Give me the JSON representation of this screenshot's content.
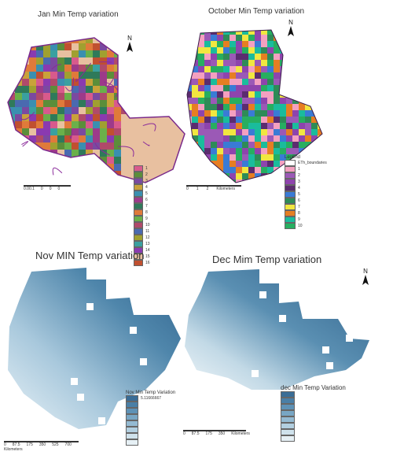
{
  "maps": {
    "jan": {
      "title": "Jan Min Temp variation",
      "north_label": "N",
      "scale_ticks": [
        "0.00.1",
        "0",
        "0",
        "0"
      ],
      "legend_items": [
        {
          "label": "1",
          "color": "#d85a8c"
        },
        {
          "label": "2",
          "color": "#5b8e3a"
        },
        {
          "label": "3",
          "color": "#7a4aa0"
        },
        {
          "label": "4",
          "color": "#c9a23a"
        },
        {
          "label": "5",
          "color": "#3a8fb0"
        },
        {
          "label": "6",
          "color": "#9d3a8a"
        },
        {
          "label": "7",
          "color": "#2f7a5a"
        },
        {
          "label": "8",
          "color": "#e07a3a"
        },
        {
          "label": "9",
          "color": "#6ab04a"
        },
        {
          "label": "10",
          "color": "#b04a6a"
        },
        {
          "label": "11",
          "color": "#4a6ab0"
        },
        {
          "label": "12",
          "color": "#a0a030"
        },
        {
          "label": "13",
          "color": "#3aa0a0"
        },
        {
          "label": "14",
          "color": "#8a3ab0"
        },
        {
          "label": "15",
          "color": "#e8c0a0"
        },
        {
          "label": "16",
          "color": "#c05030"
        }
      ]
    },
    "oct": {
      "title": "October Min Temp variation",
      "north_label": "N",
      "legend_title": "Legend",
      "scale_ticks": [
        "0",
        "1",
        "2",
        "Kilometers"
      ],
      "legend_items": [
        {
          "label": "ETh_boundaries",
          "color": "#ffffff"
        },
        {
          "label": "1",
          "color": "#f4a0c0"
        },
        {
          "label": "2",
          "color": "#9b59b6"
        },
        {
          "label": "3",
          "color": "#8e44ad"
        },
        {
          "label": "4",
          "color": "#5b2c6f"
        },
        {
          "label": "5",
          "color": "#3a7bd5"
        },
        {
          "label": "6",
          "color": "#2e8b57"
        },
        {
          "label": "7",
          "color": "#f1e740"
        },
        {
          "label": "8",
          "color": "#e67e22"
        },
        {
          "label": "9",
          "color": "#1abc9c"
        },
        {
          "label": "10",
          "color": "#27ae60"
        }
      ]
    },
    "nov": {
      "title": "Nov MIN Temp variation",
      "legend_title": "Nov Min Temp Variation",
      "scale_ticks": [
        "0",
        "87.5",
        "175",
        "350",
        "525",
        "700"
      ],
      "scale_unit": "Kilometers",
      "legend_items": [
        {
          "label": "5.11666667",
          "color": "#3a6d96"
        },
        {
          "label": "",
          "color": "#4a7fa6"
        },
        {
          "label": "",
          "color": "#5e92b6"
        },
        {
          "label": "",
          "color": "#78a6c4"
        },
        {
          "label": "",
          "color": "#94bad2"
        },
        {
          "label": "",
          "color": "#b2cfe0"
        },
        {
          "label": "",
          "color": "#cfe2ec"
        },
        {
          "label": "",
          "color": "#e6f0f5"
        }
      ]
    },
    "dec": {
      "title": "Dec Mim Temp variation",
      "north_label": "N",
      "legend_title": "dec Min Temp Variation",
      "scale_ticks": [
        "0",
        "87.5",
        "175",
        "350",
        "Kilometers"
      ],
      "legend_items": [
        {
          "label": "",
          "color": "#3a6d96"
        },
        {
          "label": "",
          "color": "#4a7fa6"
        },
        {
          "label": "",
          "color": "#5e92b6"
        },
        {
          "label": "",
          "color": "#78a6c4"
        },
        {
          "label": "",
          "color": "#94bad2"
        },
        {
          "label": "",
          "color": "#b2cfe0"
        },
        {
          "label": "",
          "color": "#cfe2ec"
        },
        {
          "label": "",
          "color": "#e6f0f5"
        }
      ]
    }
  }
}
